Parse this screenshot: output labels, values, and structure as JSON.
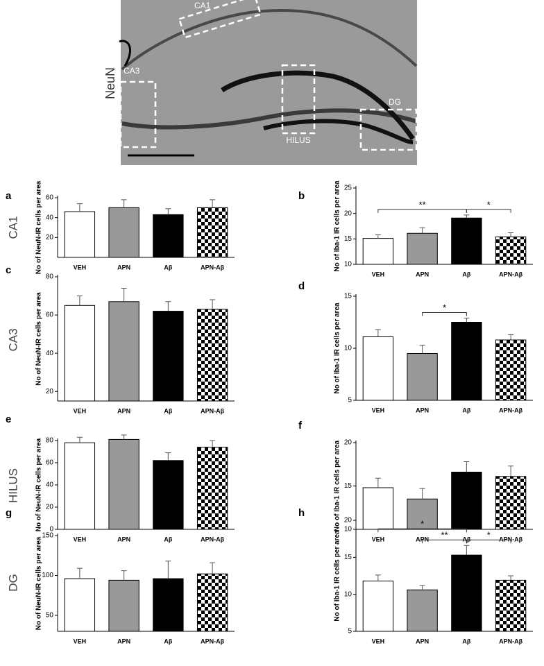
{
  "image": {
    "stain": "NeuN",
    "regions": [
      "CA1",
      "CA3",
      "HILUS",
      "DG"
    ]
  },
  "row_labels": [
    "CA1",
    "CA3",
    "HILUS",
    "DG"
  ],
  "bar_styles": [
    {
      "color": "#ffffff"
    },
    {
      "color": "#999999"
    },
    {
      "color": "#000000"
    },
    {
      "color": "#000000",
      "pattern": "checkerboard"
    }
  ],
  "chart_data": [
    {
      "type": "bar",
      "panel": "a",
      "y_label": "No of NeuN-IR cells per area",
      "categories": [
        "VEH",
        "APN",
        "Aβ",
        "APN-Aβ"
      ],
      "values": [
        46,
        50,
        43,
        50
      ],
      "errors": [
        8,
        8,
        6,
        8
      ],
      "ylim": [
        0,
        60
      ],
      "yticks": [
        20,
        40,
        60
      ],
      "brackets": []
    },
    {
      "type": "bar",
      "panel": "b",
      "y_label": "No of Iba-1 IR cells per area",
      "categories": [
        "VEH",
        "APN",
        "Aβ",
        "APN-Aβ"
      ],
      "values": [
        15.1,
        16.1,
        19.1,
        15.4
      ],
      "errors": [
        0.7,
        1.1,
        0.6,
        0.8
      ],
      "ylim": [
        10,
        25
      ],
      "yticks": [
        10,
        15,
        20,
        25
      ],
      "brackets": [
        {
          "between": [
            "VEH",
            "Aβ"
          ],
          "label": "**"
        },
        {
          "between": [
            "Aβ",
            "APN-Aβ"
          ],
          "label": "*"
        }
      ]
    },
    {
      "type": "bar",
      "panel": "c",
      "y_label": "No of NeuN-IR cells per area",
      "categories": [
        "VEH",
        "APN",
        "Aβ",
        "APN-Aβ"
      ],
      "values": [
        65,
        67,
        62,
        63
      ],
      "errors": [
        5,
        7,
        5,
        5
      ],
      "ylim": [
        15,
        80
      ],
      "yticks": [
        20,
        40,
        60,
        80
      ],
      "brackets": []
    },
    {
      "type": "bar",
      "panel": "d",
      "y_label": "No of Iba-1 IR cells per area",
      "categories": [
        "VEH",
        "APN",
        "Aβ",
        "APN-Aβ"
      ],
      "values": [
        11.1,
        9.5,
        12.5,
        10.8
      ],
      "errors": [
        0.7,
        0.8,
        0.4,
        0.5
      ],
      "ylim": [
        5,
        15
      ],
      "yticks": [
        5,
        10,
        15
      ],
      "brackets": [
        {
          "between": [
            "APN",
            "Aβ"
          ],
          "label": "*"
        }
      ]
    },
    {
      "type": "bar",
      "panel": "e",
      "y_label": "No of NeuN-IR cells per area",
      "categories": [
        "VEH",
        "APN",
        "Aβ",
        "APN-Aβ"
      ],
      "values": [
        78,
        81,
        62,
        74
      ],
      "errors": [
        5,
        4,
        7,
        6
      ],
      "ylim": [
        0,
        80
      ],
      "yticks": [
        0,
        20,
        40,
        60,
        80
      ],
      "brackets": []
    },
    {
      "type": "bar",
      "panel": "f",
      "y_label": "No of Iba-1 IR cells per area",
      "categories": [
        "VEH",
        "APN",
        "Aβ",
        "APN-Aβ"
      ],
      "values": [
        14.8,
        13.5,
        16.6,
        16.1
      ],
      "errors": [
        1.1,
        1.2,
        1.2,
        1.2
      ],
      "ylim": [
        10,
        20
      ],
      "yticks": [
        10,
        15,
        20
      ],
      "brackets": []
    },
    {
      "type": "bar",
      "panel": "g",
      "y_label": "No of NeuN-IR cells per area",
      "categories": [
        "VEH",
        "APN",
        "Aβ",
        "APN-Aβ"
      ],
      "values": [
        96,
        94,
        96,
        102
      ],
      "errors": [
        13,
        12,
        22,
        14
      ],
      "ylim": [
        30,
        150
      ],
      "yticks": [
        50,
        100,
        150
      ],
      "brackets": []
    },
    {
      "type": "bar",
      "panel": "h",
      "y_label": "No of Iba-1 IR cells per area",
      "categories": [
        "VEH",
        "APN",
        "Aβ",
        "APN-Aβ"
      ],
      "values": [
        11.8,
        10.6,
        15.3,
        11.9
      ],
      "errors": [
        0.8,
        0.6,
        1.3,
        0.6
      ],
      "ylim": [
        5,
        20
      ],
      "yticks": [
        5,
        10,
        15,
        20
      ],
      "brackets": [
        {
          "between": [
            "VEH",
            "Aβ"
          ],
          "label": "*"
        },
        {
          "between": [
            "APN",
            "Aβ"
          ],
          "label": "**"
        },
        {
          "between": [
            "Aβ",
            "APN-Aβ"
          ],
          "label": "*"
        }
      ]
    }
  ]
}
